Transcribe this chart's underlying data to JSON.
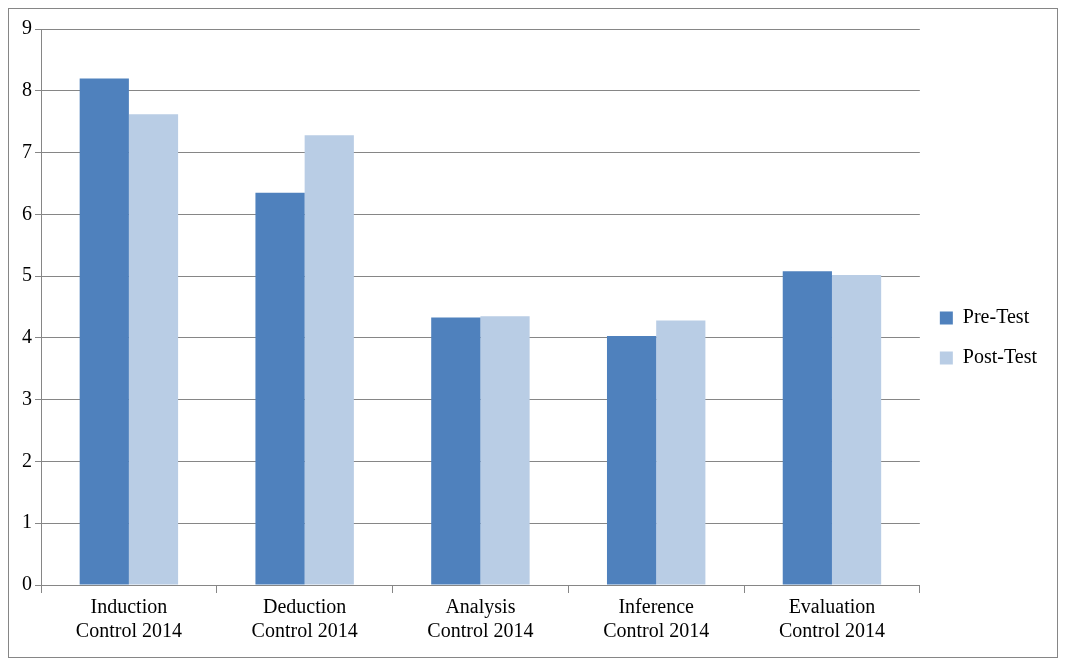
{
  "chart_data": {
    "type": "bar",
    "categories": [
      "Induction Control 2014",
      "Deduction Control 2014",
      "Analysis Control 2014",
      "Inference Control 2014",
      "Evaluation Control 2014"
    ],
    "series": [
      {
        "name": "Pre-Test",
        "color": "#4f81bd",
        "values": [
          8.2,
          6.35,
          4.33,
          4.03,
          5.08
        ]
      },
      {
        "name": "Post-Test",
        "color": "#b9cde5",
        "values": [
          7.62,
          7.28,
          4.35,
          4.28,
          5.02
        ]
      }
    ],
    "ylim": [
      0,
      9
    ],
    "yticks": [
      0,
      1,
      2,
      3,
      4,
      5,
      6,
      7,
      8,
      9
    ],
    "grid": "y",
    "legend": "right"
  }
}
